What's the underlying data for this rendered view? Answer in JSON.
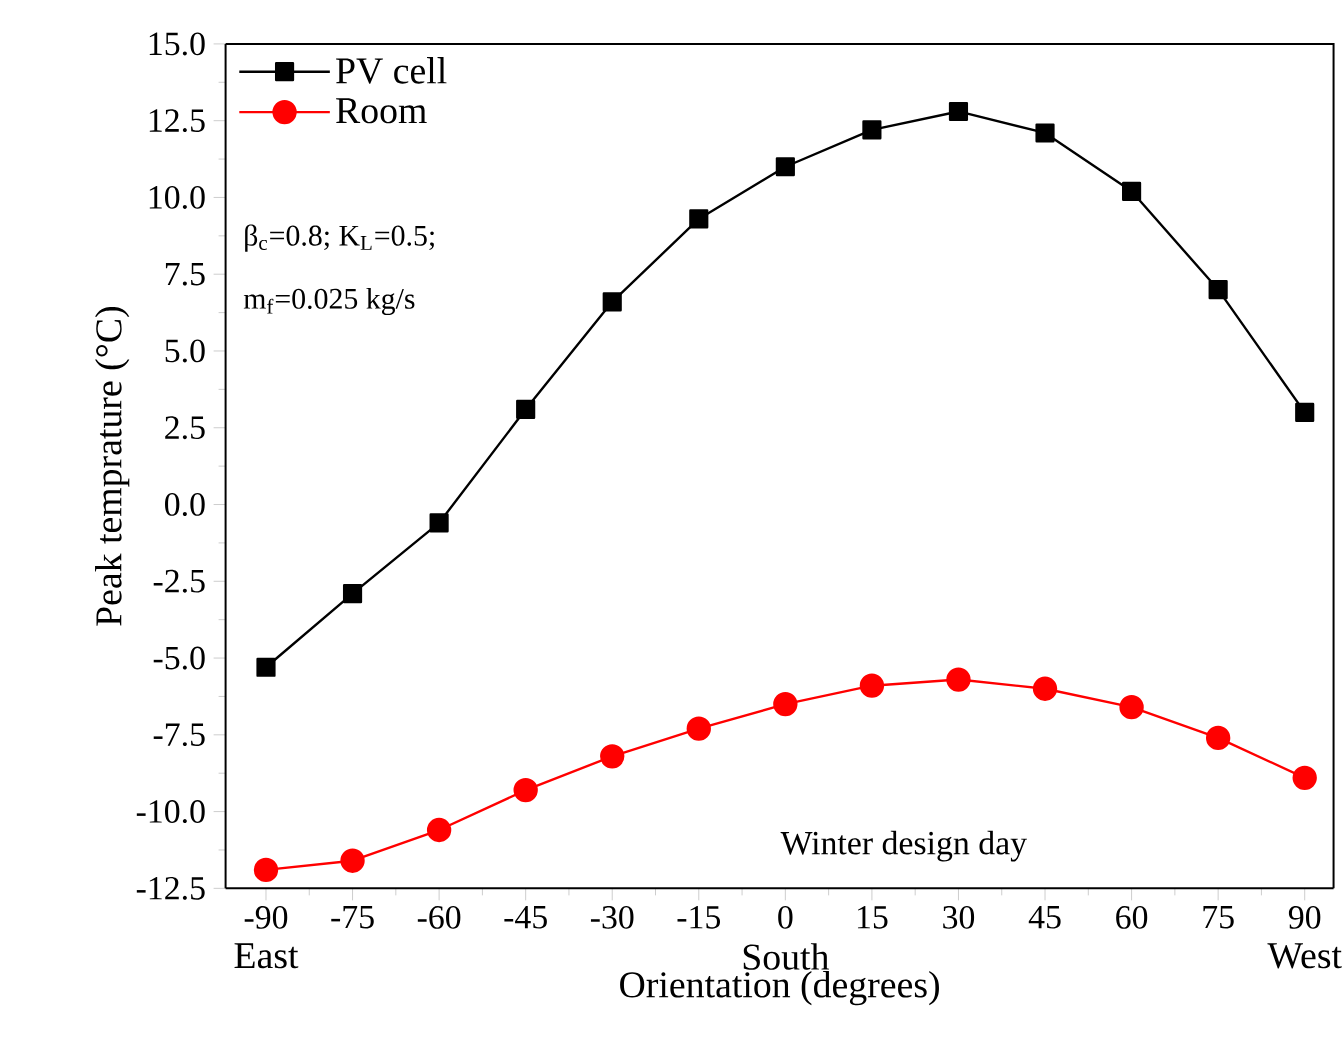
{
  "chart_data": {
    "type": "line",
    "xlabel": "Orientation (degrees)",
    "ylabel": "Peak temprature (°C)",
    "x": [
      -90,
      -75,
      -60,
      -45,
      -30,
      -15,
      0,
      15,
      30,
      45,
      60,
      75,
      90
    ],
    "series": [
      {
        "name": "PV cell",
        "color": "#000000",
        "marker": "square",
        "values": [
          -5.3,
          -2.9,
          -0.6,
          3.1,
          6.6,
          9.3,
          11.0,
          12.2,
          12.8,
          12.1,
          10.2,
          7.0,
          3.0
        ]
      },
      {
        "name": "Room",
        "color": "#ff0000",
        "marker": "circle",
        "values": [
          -11.9,
          -11.6,
          -10.6,
          -9.3,
          -8.2,
          -7.3,
          -6.5,
          -5.9,
          -5.7,
          -6.0,
          -6.6,
          -7.6,
          -8.9
        ]
      }
    ],
    "xlim": [
      -97,
      95
    ],
    "xticks": [
      -90,
      -75,
      -60,
      -45,
      -30,
      -15,
      0,
      15,
      30,
      45,
      60,
      75,
      90
    ],
    "ylim": [
      -12.5,
      15
    ],
    "yticks": [
      {
        "value": -12.5,
        "label": "-12.5"
      },
      {
        "value": -10,
        "label": "-10.0"
      },
      {
        "value": -7.5,
        "label": "-7.5"
      },
      {
        "value": -5,
        "label": "-5.0"
      },
      {
        "value": -2.5,
        "label": "-2.5"
      },
      {
        "value": 0,
        "label": "0.0"
      },
      {
        "value": 2.5,
        "label": "2.5"
      },
      {
        "value": 5,
        "label": "5.0"
      },
      {
        "value": 7.5,
        "label": "7.5"
      },
      {
        "value": 10,
        "label": "10.0"
      },
      {
        "value": 12.5,
        "label": "12.5"
      },
      {
        "value": 15,
        "label": "15.0"
      }
    ],
    "annotations": [
      "β$_{c}$=0.8;  K$_{L}$=0.5;",
      "m$_{f}$=0.025 kg/s",
      "Winter design day",
      "East",
      "South",
      "West"
    ],
    "legend": "top left",
    "grid": false,
    "line_style": "solid"
  }
}
